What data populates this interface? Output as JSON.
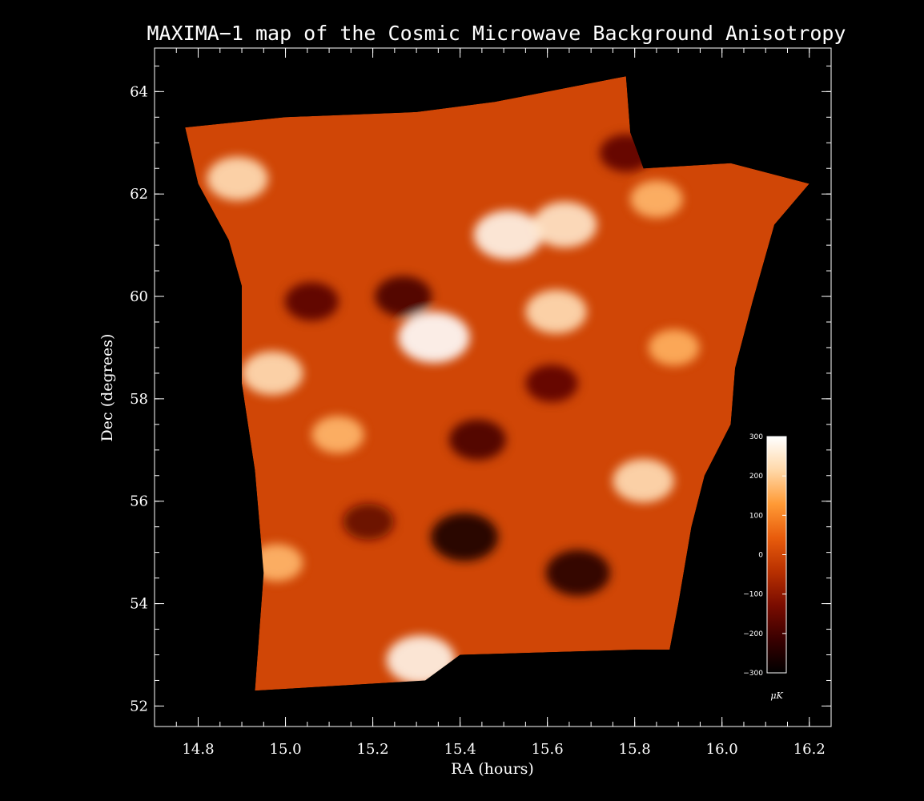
{
  "chart_data": {
    "type": "heatmap",
    "title": "MAXIMA−1 map of the Cosmic Microwave Background Anisotropy",
    "xlabel": "RA (hours)",
    "ylabel": "Dec (degrees)",
    "xlim": [
      14.7,
      16.25
    ],
    "ylim": [
      51.6,
      64.85
    ],
    "x_ticks": [
      14.8,
      15.0,
      15.2,
      15.4,
      15.6,
      15.8,
      16.0,
      16.2
    ],
    "x_tick_labels": [
      "14.8",
      "15.0",
      "15.2",
      "15.4",
      "15.6",
      "15.8",
      "16.0",
      "16.2"
    ],
    "y_ticks": [
      52,
      54,
      56,
      58,
      60,
      62,
      64
    ],
    "y_tick_labels": [
      "52",
      "54",
      "56",
      "58",
      "60",
      "62",
      "64"
    ],
    "colorbar": {
      "unit": "μK",
      "range": [
        -300,
        300
      ],
      "ticks": [
        300,
        200,
        100,
        0,
        -100,
        -200,
        -300
      ],
      "tick_labels": [
        "300",
        "200",
        "100",
        "0",
        "−100",
        "−200",
        "−300"
      ],
      "colors": [
        "#000000",
        "#3a0000",
        "#7a0c00",
        "#b83000",
        "#e85c0c",
        "#ff9a35",
        "#ffd8a8",
        "#ffffff"
      ]
    },
    "map_region_vertices_ra_dec": [
      [
        14.93,
        52.3
      ],
      [
        15.32,
        52.5
      ],
      [
        15.4,
        53.0
      ],
      [
        15.8,
        53.1
      ],
      [
        15.88,
        53.1
      ],
      [
        15.9,
        54.0
      ],
      [
        15.93,
        55.5
      ],
      [
        15.96,
        56.5
      ],
      [
        16.02,
        57.5
      ],
      [
        16.03,
        58.6
      ],
      [
        16.07,
        59.9
      ],
      [
        16.12,
        61.4
      ],
      [
        16.2,
        62.2
      ],
      [
        16.02,
        62.6
      ],
      [
        15.82,
        62.5
      ],
      [
        15.79,
        63.2
      ],
      [
        15.78,
        64.3
      ],
      [
        15.48,
        63.8
      ],
      [
        15.3,
        63.6
      ],
      [
        15.0,
        63.5
      ],
      [
        14.77,
        63.3
      ],
      [
        14.8,
        62.2
      ],
      [
        14.87,
        61.1
      ],
      [
        14.9,
        60.2
      ],
      [
        14.9,
        58.3
      ],
      [
        14.93,
        56.6
      ],
      [
        14.95,
        54.6
      ]
    ],
    "hot_spots": [
      {
        "ra": 14.89,
        "dec": 62.3,
        "value": 230
      },
      {
        "ra": 15.51,
        "dec": 61.2,
        "value": 280
      },
      {
        "ra": 15.64,
        "dec": 61.4,
        "value": 250
      },
      {
        "ra": 15.62,
        "dec": 59.7,
        "value": 230
      },
      {
        "ra": 15.34,
        "dec": 59.2,
        "value": 300
      },
      {
        "ra": 14.97,
        "dec": 58.5,
        "value": 230
      },
      {
        "ra": 15.82,
        "dec": 56.4,
        "value": 230
      },
      {
        "ra": 15.31,
        "dec": 52.9,
        "value": 280
      },
      {
        "ra": 15.12,
        "dec": 57.3,
        "value": 170
      },
      {
        "ra": 14.98,
        "dec": 54.8,
        "value": 170
      },
      {
        "ra": 15.89,
        "dec": 59.0,
        "value": 160
      },
      {
        "ra": 15.85,
        "dec": 61.9,
        "value": 170
      }
    ],
    "cold_spots": [
      {
        "ra": 15.41,
        "dec": 55.3,
        "value": -270
      },
      {
        "ra": 15.67,
        "dec": 54.6,
        "value": -250
      },
      {
        "ra": 15.44,
        "dec": 57.2,
        "value": -200
      },
      {
        "ra": 15.27,
        "dec": 60.0,
        "value": -200
      },
      {
        "ra": 15.78,
        "dec": 62.8,
        "value": -170
      },
      {
        "ra": 15.06,
        "dec": 59.9,
        "value": -180
      },
      {
        "ra": 15.61,
        "dec": 58.3,
        "value": -170
      },
      {
        "ra": 15.19,
        "dec": 55.6,
        "value": -160
      }
    ]
  }
}
